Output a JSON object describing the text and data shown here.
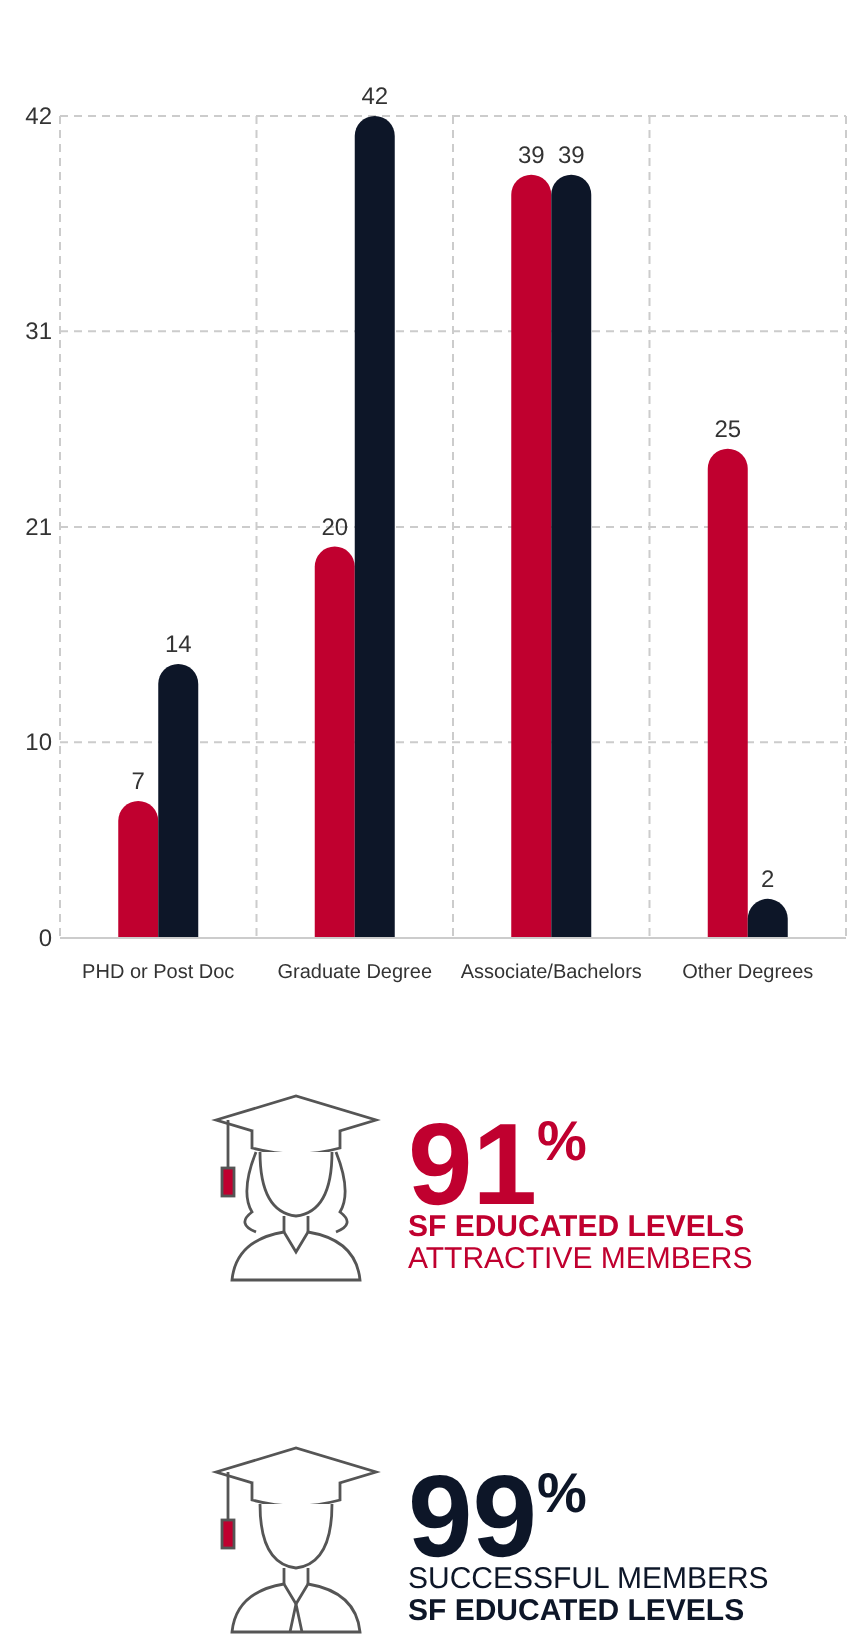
{
  "chart_data": [
    {
      "type": "bar",
      "categories": [
        "PHD or Post Doc",
        "Graduate Degree",
        "Associate/Bachelors",
        "Other Degrees"
      ],
      "series": [
        {
          "color": "#c0002f",
          "values": [
            7,
            20,
            39,
            25
          ]
        },
        {
          "color": "#0d1628",
          "values": [
            14,
            42,
            39,
            2
          ]
        }
      ],
      "ylim": [
        0,
        42
      ],
      "yticks": [
        0,
        10,
        21,
        31,
        42
      ],
      "grid": true,
      "data_labels": true
    },
    {
      "type": "other",
      "categories": [
        null,
        null
      ],
      "values": [
        91,
        99
      ],
      "value_labels": [
        "91$^{%}$",
        "99$^{%}$"
      ],
      "colors": [
        "#c0002f",
        "#0d1628"
      ],
      "annotations": [
        "SF EDUCATED LEVELS",
        "ATTRACTIVE MEMBERS",
        "SUCCESSFUL MEMBERS",
        "SF EDUCATED LEVELS"
      ]
    }
  ]
}
